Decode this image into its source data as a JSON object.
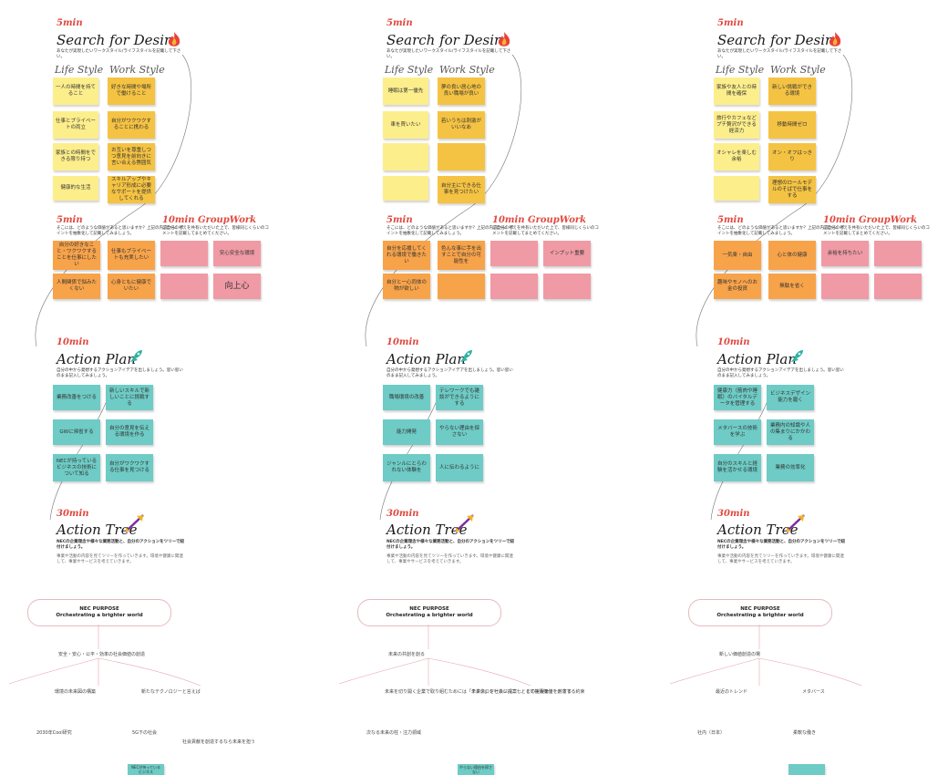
{
  "boards": [
    {
      "desire_time": "5min",
      "desire_title": "Search for Desire",
      "desire_desc": "あなたが実現したいワークスタイル/ライフスタイルを記載して下さい。",
      "life_label": "Life Style",
      "work_label": "Work Style",
      "life_notes": [
        "一人の時間を持てること",
        "仕事とプライベートの両立",
        "家族との時間をできる限り持つ",
        "健康的な生活"
      ],
      "work_notes": [
        "好きな時間や場所で働けること",
        "自分がワクワクすることに携わる",
        "お互いを尊重しつつ意見を前向きに言い合える雰囲気",
        "スキルアップやキャリア形成に必要なサポートを提供してくれる"
      ],
      "value_time": "5min",
      "value_desc": "そこには、どのような価値があると思いますか？上記の内容から、ポイントを抽象化して記載してみましょう。",
      "value_notes": [
        "自分の好きなこと・ワクワクすることを仕事にしたい",
        "仕事もプライベートも充実したい",
        "人間関係で悩みたくない",
        "心身ともに健康でいたい"
      ],
      "gw_time": "10min GroupWork",
      "gw_desc": "ご自分の考えを共有いただいた上で、皆様同じくらいのコメントを記載してまとめてください。",
      "gw_notes": [
        "",
        "安心安全な環境",
        "",
        "向上心"
      ],
      "ap_time": "10min",
      "ap_title": "Action Plan",
      "ap_desc": "自分の中から発想するアクションアイデアを出しましょう。思い思いのまま記入してみましょう。",
      "ap_notes": [
        "業務改善をつける",
        "新しいスキルで新しいことに挑戦する",
        "GWに帰省する",
        "自分の意見を伝える環境を作る",
        "NECが持っているビジネスの技術について知る",
        "自分がワクワクする仕事を見つける"
      ],
      "at_time": "30min",
      "at_title": "Action Tree",
      "at_desc": "NECの企業理念や様々な業務活動と、自分のアクションをツリーで紐付けましょう。",
      "at_desc2": "事業や活動の内容を見てツリーを作っていきます。環境や健康に関連して、事業やサービスを考えていきます。",
      "purpose_line1": "NEC PURPOSE",
      "purpose_line2": "Orchestrating a brighter world",
      "tree_root": "安全・安心・公平・効率の社会価値の創造",
      "tree_labels": [
        "環境の未来図の構築",
        "新たなテクノロジーと言えば",
        "2030年Cool研究",
        "5G下の社会",
        "社会貢献を創造するなら未来を担う"
      ],
      "tree_note": "NECが持っているビジネス"
    },
    {
      "desire_time": "5min",
      "desire_title": "Search for Desire",
      "desire_desc": "あなたが実現したいワークスタイル/ライフスタイルを記載して下さい。",
      "life_label": "Life Style",
      "work_label": "Work Style",
      "life_notes": [
        "睡眠は第一優先",
        "車を買いたい",
        "",
        ""
      ],
      "work_notes": [
        "夢の良い居心地の良い職場が良い",
        "若いうちは刺激がいいなあ",
        "",
        "自分主にできる仕事を見つけたい"
      ],
      "value_time": "5min",
      "value_desc": "そこには、どのような価値があると思いますか？上記の内容から、ポイントを抽象化して記載してみましょう。",
      "value_notes": [
        "自分を応援してくれる環境で働きたい",
        "色んな事に手を出すことで自分の可能性を",
        "自分と一心同体の物が欲しい",
        ""
      ],
      "gw_time": "10min GroupWork",
      "gw_desc": "ご自分の考えを共有いただいた上で、皆様同じくらいのコメントを記載してまとめてください。",
      "gw_notes": [
        "",
        "インプット重要",
        "",
        ""
      ],
      "ap_time": "10min",
      "ap_title": "Action Plan",
      "ap_desc": "自分の中から発想するアクションアイデアを出しましょう。思い思いのまま記入してみましょう。",
      "ap_notes": [
        "職場環境の改善",
        "テレワークでも雑談ができるようにする",
        "能力開発",
        "やらない理由を探さない",
        "ジャンルにとらわれない体験を",
        "人に伝わるように"
      ],
      "at_time": "30min",
      "at_title": "Action Tree",
      "at_desc": "NECの企業理念や様々な業務活動と、自分のアクションをツリーで紐付けましょう。",
      "at_desc2": "事業や活動の内容を見てツリーを作っていきます。環境や健康に関連して、事業やサービスを考えていきます。",
      "purpose_line1": "NEC PURPOSE",
      "purpose_line2": "Orchestrating a brighter world",
      "tree_root": "未来の共創を創る",
      "tree_labels": [
        "未来を切り開く企業で取り組むためには「未来像」を社会に提案し、その実現をリードする",
        "テクノロジーカンパニーとして社会価値を創造する約束",
        "次なる未来の柱・注力領域"
      ],
      "tree_note": "やらない理由を探さない"
    },
    {
      "desire_time": "5min",
      "desire_title": "Search for Desire",
      "desire_desc": "あなたが実現したいワークスタイル/ライフスタイルを記載して下さい。",
      "life_label": "Life Style",
      "work_label": "Work Style",
      "life_notes": [
        "家族や友人との時間を確保",
        "旅行やカフェなどプチ贅沢ができる経済力",
        "オシャレを楽しむ余裕",
        ""
      ],
      "work_notes": [
        "新しい挑戦ができる環境",
        "移動時間ゼロ",
        "オン・オフはっきり",
        "理想のロールモデルのそばで仕事をする"
      ],
      "value_time": "5min",
      "value_desc": "そこには、どのような価値があると思いますか？上記の内容から、ポイントを抽象化して記載してみましょう。",
      "value_notes": [
        "一気楽・自由",
        "心と体の健康",
        "趣味やモノへのお金の投資",
        "無駄を省く"
      ],
      "gw_time": "10min GroupWork",
      "gw_desc": "ご自分の考えを共有いただいた上で、皆様同じくらいのコメントを記載してまとめてください。",
      "gw_notes": [
        "余裕を持ちたい",
        "",
        "",
        ""
      ],
      "ap_time": "10min",
      "ap_title": "Action Plan",
      "ap_desc": "自分の中から発想するアクションアイデアを出しましょう。思い思いのまま記入してみましょう。",
      "ap_notes": [
        "健康力（筋肉や睡眠）のバイタルデータを管理する",
        "ビジネスデザイン能力を磨く",
        "メタバースの技術を学ぶ",
        "業務内の知識や人の集まりにかかわる",
        "自分のスキルと経験を活かせる環境",
        "業務の効率化"
      ],
      "at_time": "30min",
      "at_title": "Action Tree",
      "at_desc": "NECの企業理念や様々な業務活動と、自分のアクションをツリーで紐付けましょう。",
      "at_desc2": "事業や活動の内容を見てツリーを作っていきます。環境や健康に関連して、事業やサービスを考えていきます。",
      "purpose_line1": "NEC PURPOSE",
      "purpose_line2": "Orchestrating a brighter world",
      "tree_root": "新しい価値創造の場",
      "tree_labels": [
        "最近のトレンド",
        "メタバース",
        "社内（日本）",
        "柔軟な働き"
      ],
      "tree_note": ""
    }
  ]
}
